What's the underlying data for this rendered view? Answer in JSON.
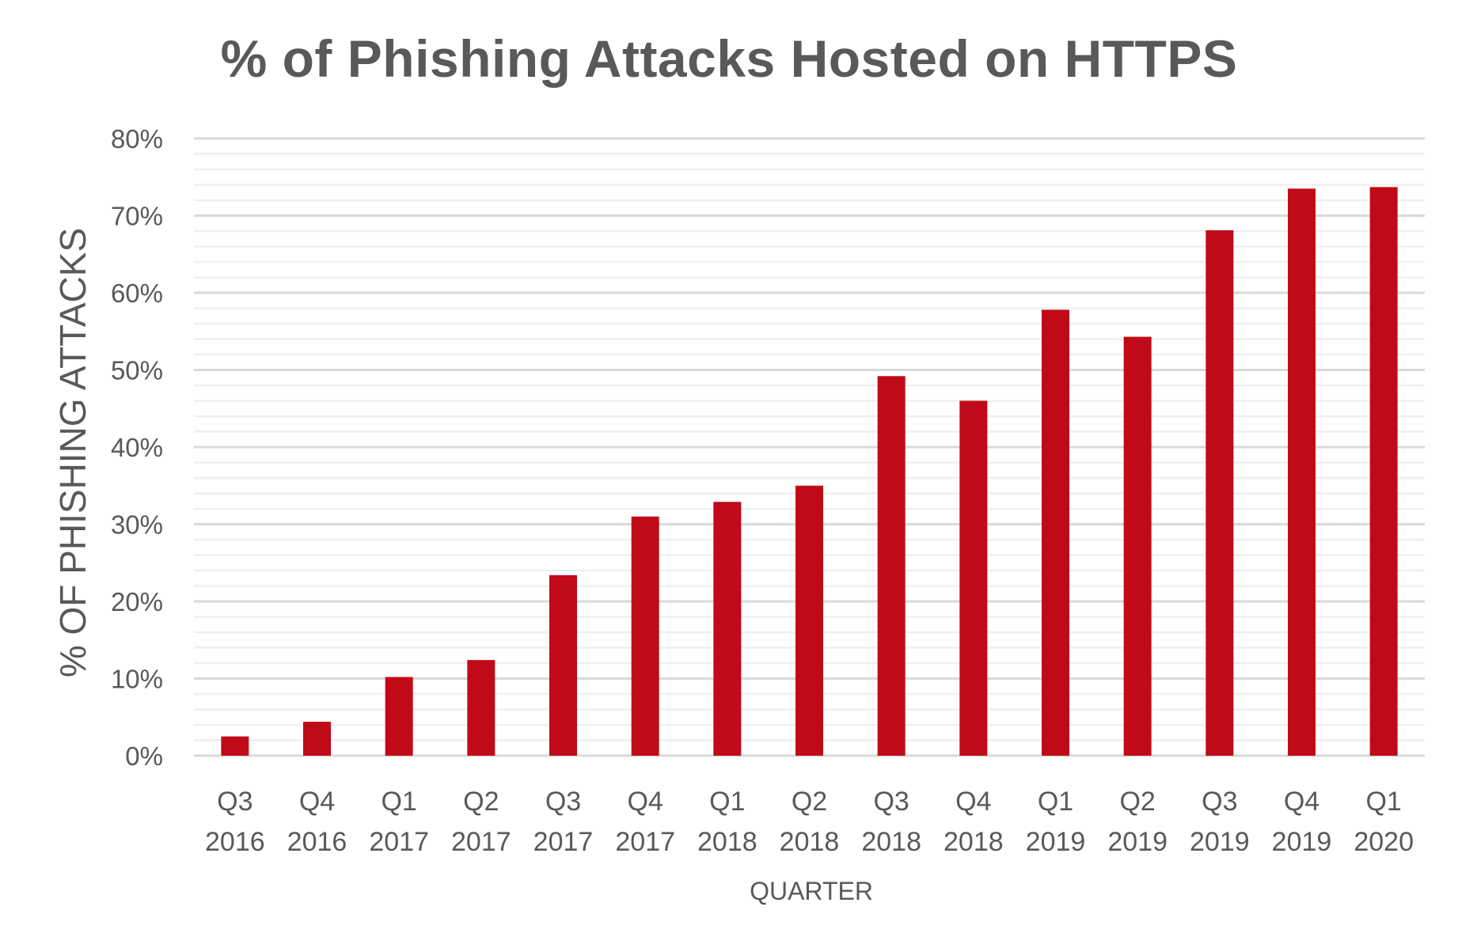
{
  "chart_data": {
    "type": "bar",
    "title": "% of Phishing Attacks Hosted on HTTPS",
    "xlabel": "QUARTER",
    "ylabel": "% OF PHISHING ATTACKS",
    "ylim": [
      0,
      80
    ],
    "y_ticks": [
      "0%",
      "10%",
      "20%",
      "30%",
      "40%",
      "50%",
      "60%",
      "70%",
      "80%"
    ],
    "y_tick_values": [
      0,
      10,
      20,
      30,
      40,
      50,
      60,
      70,
      80
    ],
    "minor_grid_step": 2,
    "grid": true,
    "categories": [
      {
        "quarter": "Q3",
        "year": "2016"
      },
      {
        "quarter": "Q4",
        "year": "2016"
      },
      {
        "quarter": "Q1",
        "year": "2017"
      },
      {
        "quarter": "Q2",
        "year": "2017"
      },
      {
        "quarter": "Q3",
        "year": "2017"
      },
      {
        "quarter": "Q4",
        "year": "2017"
      },
      {
        "quarter": "Q1",
        "year": "2018"
      },
      {
        "quarter": "Q2",
        "year": "2018"
      },
      {
        "quarter": "Q3",
        "year": "2018"
      },
      {
        "quarter": "Q4",
        "year": "2018"
      },
      {
        "quarter": "Q1",
        "year": "2019"
      },
      {
        "quarter": "Q2",
        "year": "2019"
      },
      {
        "quarter": "Q3",
        "year": "2019"
      },
      {
        "quarter": "Q4",
        "year": "2019"
      },
      {
        "quarter": "Q1",
        "year": "2020"
      }
    ],
    "values": [
      2.5,
      4.4,
      10.2,
      12.4,
      23.4,
      31.0,
      32.9,
      35.0,
      49.2,
      46.0,
      57.8,
      54.3,
      68.1,
      73.5,
      73.7
    ],
    "colors": {
      "bar": "#c00a18",
      "grid_major": "#d9d9d9",
      "grid_minor": "#efefef",
      "text": "#595959"
    }
  }
}
